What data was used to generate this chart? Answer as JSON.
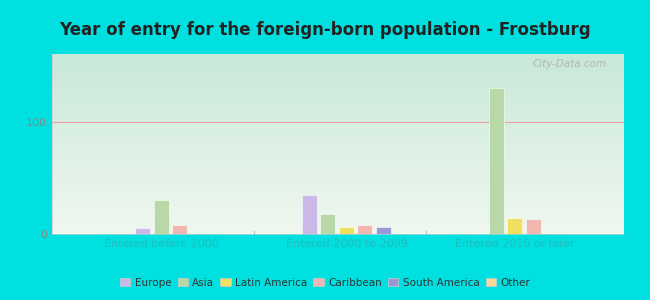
{
  "title": "Year of entry for the foreign-born population - Frostburg",
  "groups": [
    "Entered before 2000",
    "Entered 2000 to 2009",
    "Entered 2010 or later"
  ],
  "categories": [
    "Europe",
    "Asia",
    "Latin America",
    "Caribbean",
    "South America",
    "Other"
  ],
  "colors": [
    "#c9b8e8",
    "#b8d8a8",
    "#f0e060",
    "#f0b8b0",
    "#9898d8",
    "#f8d898"
  ],
  "bar_data": [
    [
      5,
      30,
      0,
      8,
      0,
      0
    ],
    [
      35,
      18,
      6,
      8,
      6,
      0
    ],
    [
      0,
      130,
      14,
      13,
      0,
      0
    ]
  ],
  "ylim": [
    0,
    160
  ],
  "yticks": [
    0,
    100
  ],
  "background_color": "#00e0e0",
  "watermark": "City-Data.com",
  "group_label_color": "#22bbbb",
  "legend_label_color": "#333333",
  "title_color": "#222222",
  "title_fontsize": 12,
  "gridline_color": "#f0a0a0",
  "plot_bg_color_top": "#f0f8f0",
  "plot_bg_color_bottom": "#c8e8d8"
}
